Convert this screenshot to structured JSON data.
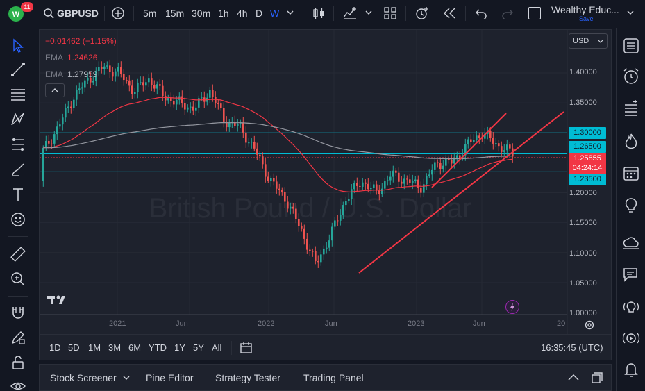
{
  "topbar": {
    "badge_count": "11",
    "symbol": "GBPUSD",
    "intervals": [
      "5m",
      "15m",
      "30m",
      "1h",
      "4h",
      "D",
      "W"
    ],
    "active_interval": "W",
    "layout_name": "Wealthy Educ...",
    "save_label": "Save"
  },
  "legend": {
    "change": "−0.01462 (−1.15%)",
    "ema1_label": "EMA",
    "ema1_value": "1.24626",
    "ema2_label": "EMA",
    "ema2_value": "1.27959"
  },
  "currency": "USD",
  "watermark": "British Pound / U.S. Dollar",
  "price_axis": [
    "1.40000",
    "1.35000",
    "1.30000",
    "1.26500",
    "1.25855",
    "1.20000",
    "1.15000",
    "1.10000",
    "1.05000",
    "1.00000"
  ],
  "price_tags": {
    "level_1300": "1.30000",
    "level_1265": "1.26500",
    "current": "1.25855",
    "countdown": "04:24:14",
    "level_1235": "1.23500"
  },
  "date_axis": [
    "2021",
    "Jun",
    "2022",
    "Jun",
    "2023",
    "Jun",
    "20"
  ],
  "ranges": [
    "1D",
    "5D",
    "1M",
    "3M",
    "6M",
    "YTD",
    "1Y",
    "5Y",
    "All"
  ],
  "clock": "16:35:45 (UTC)",
  "bottom_panel": {
    "tabs": [
      "Stock Screener",
      "Pine Editor",
      "Strategy Tester",
      "Trading Panel"
    ]
  },
  "colors": {
    "up": "#26a69a",
    "down": "#ef5350",
    "ema_fast": "#f23645",
    "ema_slow": "#9598a1",
    "hline": "#00bcd4",
    "trendline": "#f23645",
    "current_tag": "#f23645",
    "level_tag": "#00bcd4",
    "accent": "#2962ff"
  }
}
